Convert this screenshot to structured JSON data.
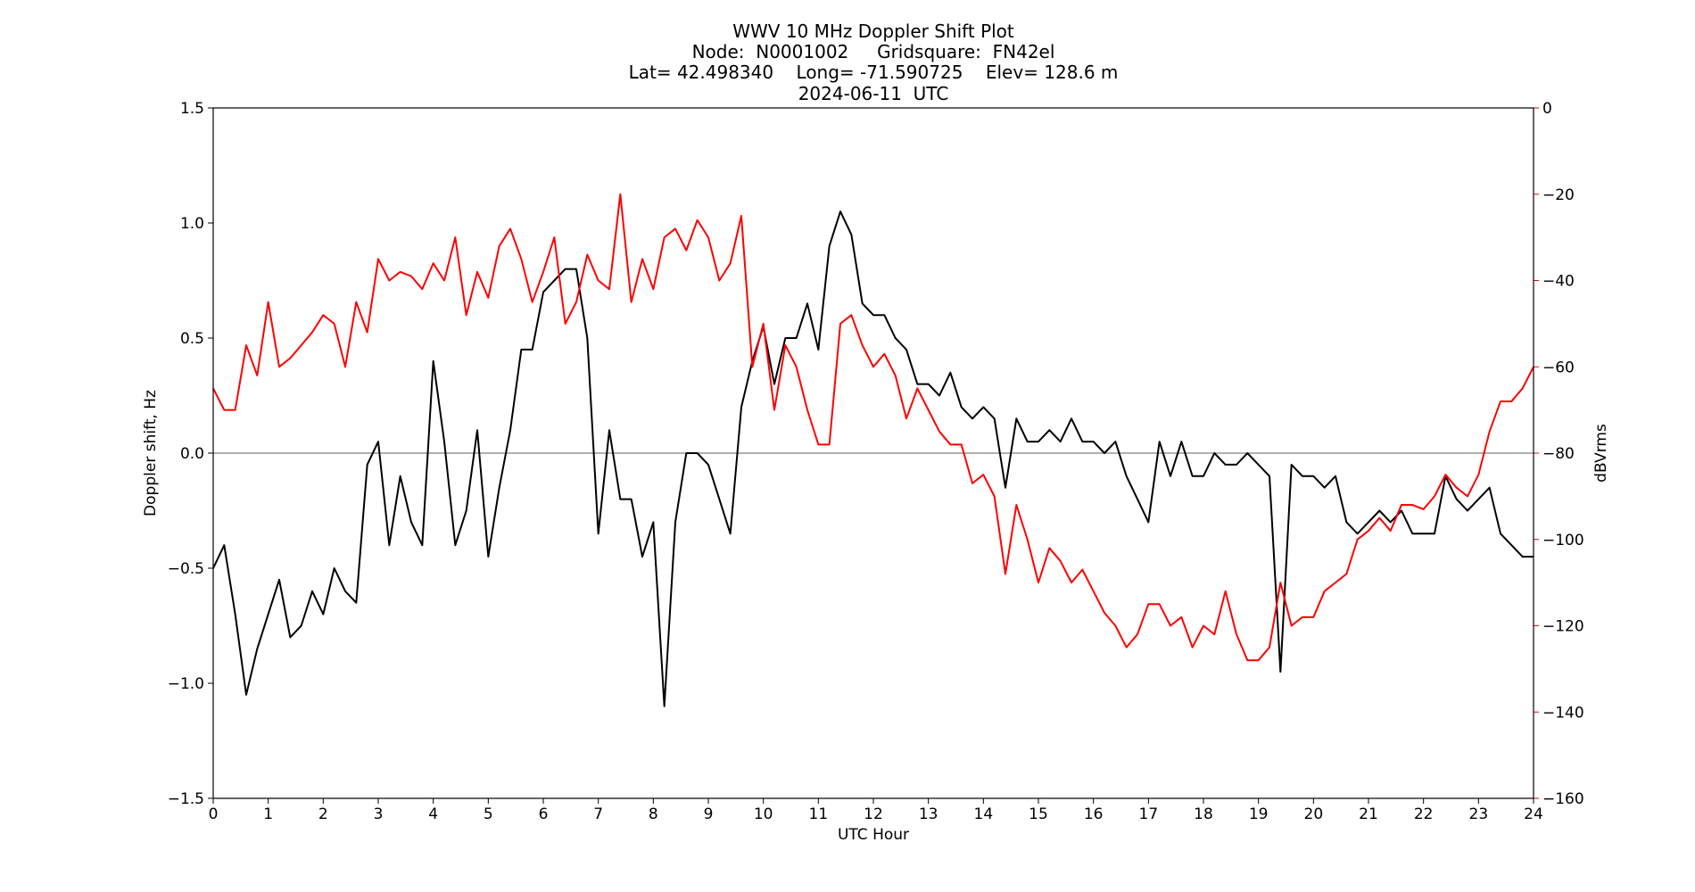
{
  "chart_data": {
    "type": "line",
    "title": [
      "WWV 10 MHz Doppler Shift Plot",
      "Node:  N0001002     Gridsquare:  FN42el",
      "Lat= 42.498340    Long= -71.590725    Elev= 128.6 m",
      "2024-06-11  UTC"
    ],
    "x_label": "UTC Hour",
    "y_label": "Doppler shift, Hz",
    "y2_label": "dBVrms",
    "x": [
      0,
      0.2,
      0.4,
      0.6,
      0.8,
      1,
      1.2,
      1.4,
      1.6,
      1.8,
      2,
      2.2,
      2.4,
      2.6,
      2.8,
      3,
      3.2,
      3.4,
      3.6,
      3.8,
      4,
      4.2,
      4.4,
      4.6,
      4.8,
      5,
      5.2,
      5.4,
      5.6,
      5.8,
      6,
      6.2,
      6.4,
      6.6,
      6.8,
      7,
      7.2,
      7.4,
      7.6,
      7.8,
      8,
      8.2,
      8.4,
      8.6,
      8.8,
      9,
      9.2,
      9.4,
      9.6,
      9.8,
      10,
      10.2,
      10.4,
      10.6,
      10.8,
      11,
      11.2,
      11.4,
      11.6,
      11.8,
      12,
      12.2,
      12.4,
      12.6,
      12.8,
      13,
      13.2,
      13.4,
      13.6,
      13.8,
      14,
      14.2,
      14.4,
      14.6,
      14.8,
      15,
      15.2,
      15.4,
      15.6,
      15.8,
      16,
      16.2,
      16.4,
      16.6,
      16.8,
      17,
      17.2,
      17.4,
      17.6,
      17.8,
      18,
      18.2,
      18.4,
      18.6,
      18.8,
      19,
      19.2,
      19.4,
      19.6,
      19.8,
      20,
      20.2,
      20.4,
      20.6,
      20.8,
      21,
      21.2,
      21.4,
      21.6,
      21.8,
      22,
      22.2,
      22.4,
      22.6,
      22.8,
      23,
      23.2,
      23.4,
      23.6,
      23.8,
      24
    ],
    "series": [
      {
        "color": "#000000",
        "axis": "y",
        "values": [
          -0.5,
          -0.4,
          -0.7,
          -1.05,
          -0.85,
          -0.7,
          -0.55,
          -0.8,
          -0.75,
          -0.6,
          -0.7,
          -0.5,
          -0.6,
          -0.65,
          -0.05,
          0.05,
          -0.4,
          -0.1,
          -0.3,
          -0.4,
          0.4,
          0.05,
          -0.4,
          -0.25,
          0.1,
          -0.45,
          -0.15,
          0.1,
          0.45,
          0.45,
          0.7,
          0.75,
          0.8,
          0.8,
          0.5,
          -0.35,
          0.1,
          -0.2,
          -0.2,
          -0.45,
          -0.3,
          -1.1,
          -0.3,
          0,
          0,
          -0.05,
          -0.2,
          -0.35,
          0.2,
          0.4,
          0.55,
          0.3,
          0.5,
          0.5,
          0.65,
          0.45,
          0.9,
          1.05,
          0.95,
          0.65,
          0.6,
          0.6,
          0.5,
          0.45,
          0.3,
          0.3,
          0.25,
          0.35,
          0.2,
          0.15,
          0.2,
          0.15,
          -0.15,
          0.15,
          0.05,
          0.05,
          0.1,
          0.05,
          0.15,
          0.05,
          0.05,
          0,
          0.05,
          -0.1,
          -0.2,
          -0.3,
          0.05,
          -0.1,
          0.05,
          -0.1,
          -0.1,
          0,
          -0.05,
          -0.05,
          0,
          -0.05,
          -0.1,
          -0.95,
          -0.05,
          -0.1,
          -0.1,
          -0.15,
          -0.1,
          -0.3,
          -0.35,
          -0.3,
          -0.25,
          -0.3,
          -0.25,
          -0.35,
          -0.35,
          -0.35,
          -0.1,
          -0.2,
          -0.25,
          -0.2,
          -0.15,
          -0.35,
          -0.4,
          -0.45,
          -0.45
        ]
      },
      {
        "color": "#ff0000",
        "axis": "y2",
        "values": [
          -65,
          -70,
          -70,
          -55,
          -62,
          -45,
          -60,
          -58,
          -55,
          -52,
          -48,
          -50,
          -60,
          -45,
          -52,
          -35,
          -40,
          -38,
          -39,
          -42,
          -36,
          -40,
          -30,
          -48,
          -38,
          -44,
          -32,
          -28,
          -35,
          -45,
          -38,
          -30,
          -50,
          -45,
          -34,
          -40,
          -42,
          -20,
          -45,
          -35,
          -42,
          -30,
          -28,
          -33,
          -26,
          -30,
          -40,
          -36,
          -25,
          -60,
          -50,
          -70,
          -55,
          -60,
          -70,
          -78,
          -78,
          -50,
          -48,
          -55,
          -60,
          -57,
          -62,
          -72,
          -65,
          -70,
          -75,
          -78,
          -78,
          -87,
          -85,
          -90,
          -108,
          -92,
          -100,
          -110,
          -102,
          -105,
          -110,
          -107,
          -112,
          -117,
          -120,
          -125,
          -122,
          -115,
          -115,
          -120,
          -118,
          -125,
          -120,
          -122,
          -112,
          -122,
          -128,
          -128,
          -125,
          -110,
          -120,
          -118,
          -118,
          -112,
          -110,
          -108,
          -100,
          -98,
          -95,
          -98,
          -92,
          -92,
          -93,
          -90,
          -85,
          -88,
          -90,
          -85,
          -75,
          -68,
          -68,
          -65,
          -60
        ]
      }
    ],
    "xlim": [
      0,
      24
    ],
    "xticks": [
      0,
      1,
      2,
      3,
      4,
      5,
      6,
      7,
      8,
      9,
      10,
      11,
      12,
      13,
      14,
      15,
      16,
      17,
      18,
      19,
      20,
      21,
      22,
      23,
      24
    ],
    "ylim": [
      -1.5,
      1.5
    ],
    "yticks": [
      {
        "value": -1.5,
        "label": "−1.5"
      },
      {
        "value": -1,
        "label": "−1.0"
      },
      {
        "value": -0.5,
        "label": "−0.5"
      },
      {
        "value": 0,
        "label": "0.0"
      },
      0.5,
      {
        "value": 1,
        "label": "1.0"
      },
      1.5
    ],
    "y2lim": [
      -160,
      0
    ],
    "y2ticks": [
      {
        "value": -160,
        "label": "−160"
      },
      {
        "value": -140,
        "label": "−140"
      },
      {
        "value": -120,
        "label": "−120"
      },
      {
        "value": -100,
        "label": "−100"
      },
      {
        "value": -80,
        "label": "−80"
      },
      {
        "value": -60,
        "label": "−60"
      },
      {
        "value": -40,
        "label": "−40"
      },
      {
        "value": -20,
        "label": "−20"
      },
      0
    ],
    "y2_color": "#ff0000",
    "hlines": [
      0
    ],
    "hline_color": "#808080"
  }
}
